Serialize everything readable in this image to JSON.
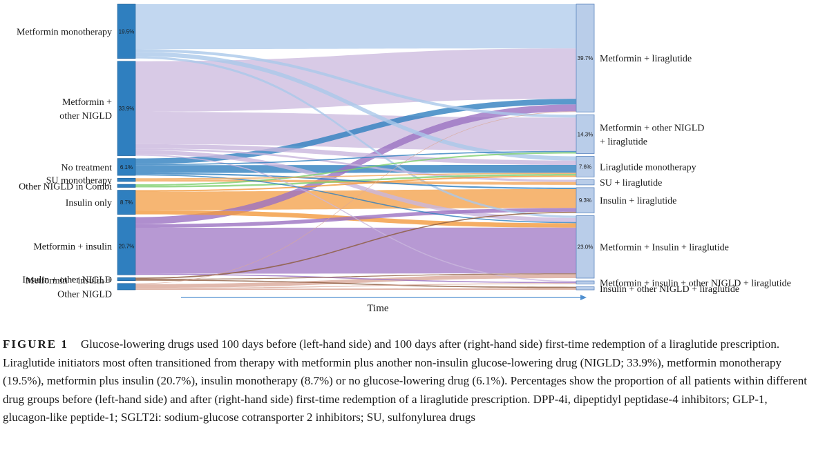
{
  "chart_data": {
    "type": "sankey",
    "xlabel": "Time",
    "unit": "%",
    "left_nodes": [
      {
        "id": "L_mono",
        "label": [
          "Metformin monotherapy"
        ],
        "value": 19.5,
        "value_label": "19.5%"
      },
      {
        "id": "L_metnigld",
        "label": [
          "Metformin  +",
          "other NIGLD"
        ],
        "value": 33.9,
        "value_label": "33.9%"
      },
      {
        "id": "L_none",
        "label": [
          "No treatment"
        ],
        "value": 6.1,
        "value_label": "6.1%"
      },
      {
        "id": "L_su",
        "label": [
          "SU monotherapy"
        ],
        "value": 1.2,
        "value_label": ""
      },
      {
        "id": "L_other",
        "label": [
          "Other NIGLD in Combi"
        ],
        "value": 1.1,
        "value_label": ""
      },
      {
        "id": "L_ins",
        "label": [
          "Insulin only"
        ],
        "value": 8.7,
        "value_label": "8.7%"
      },
      {
        "id": "L_metins",
        "label": [
          "Metformin + insulin"
        ],
        "value": 20.7,
        "value_label": "20.7%"
      },
      {
        "id": "L_insnigld",
        "label": [
          "Insulin + other NIGLD"
        ],
        "value": 1.0,
        "value_label": ""
      },
      {
        "id": "L_metinsnigld",
        "label": [
          "Metformin + insulin +",
          "Other NIGLD"
        ],
        "value": 2.3,
        "value_label": ""
      }
    ],
    "right_nodes": [
      {
        "id": "R_metlira",
        "label": [
          "Metformin + liraglutide"
        ],
        "value": 39.7,
        "value_label": "39.7%"
      },
      {
        "id": "R_metnigldlira",
        "label": [
          "Metformin + other NIGLD",
          "  + liraglutide"
        ],
        "value": 14.3,
        "value_label": "14.3%"
      },
      {
        "id": "R_liramono",
        "label": [
          "Liraglutide monotherapy"
        ],
        "value": 7.6,
        "value_label": "7.6%"
      },
      {
        "id": "R_sulira",
        "label": [
          "SU + liraglutide"
        ],
        "value": 1.9,
        "value_label": ""
      },
      {
        "id": "R_inslira",
        "label": [
          "Insulin + liraglutide"
        ],
        "value": 9.3,
        "value_label": "9.3%"
      },
      {
        "id": "R_metinslira",
        "label": [
          "Metformin + Insulin + liraglutide"
        ],
        "value": 23.0,
        "value_label": "23.0%"
      },
      {
        "id": "R_metinsniglira",
        "label": [
          "Metformin + insulin + other NIGLD + liraglutide"
        ],
        "value": 1.1,
        "value_label": ""
      },
      {
        "id": "R_insniglira",
        "label": [
          "Insulin + other NIGLD + liraglutide"
        ],
        "value": 0.7,
        "value_label": ""
      }
    ],
    "flows": [
      {
        "from": "L_mono",
        "to": "R_metlira",
        "value": 15.8
      },
      {
        "from": "L_mono",
        "to": "R_liramono",
        "value": 1.5
      },
      {
        "from": "L_mono",
        "to": "R_metnigldlira",
        "value": 1.0
      },
      {
        "from": "L_mono",
        "to": "R_metinslira",
        "value": 0.8
      },
      {
        "from": "L_metnigld",
        "to": "R_metlira",
        "value": 18.0
      },
      {
        "from": "L_metnigld",
        "to": "R_metnigldlira",
        "value": 11.5
      },
      {
        "from": "L_metnigld",
        "to": "R_liramono",
        "value": 1.6
      },
      {
        "from": "L_metnigld",
        "to": "R_metinslira",
        "value": 1.5
      },
      {
        "from": "L_metnigld",
        "to": "R_sulira",
        "value": 0.6
      },
      {
        "from": "L_metnigld",
        "to": "R_metinsniglira",
        "value": 0.4
      },
      {
        "from": "L_none",
        "to": "R_metlira",
        "value": 2.0
      },
      {
        "from": "L_none",
        "to": "R_liramono",
        "value": 2.8
      },
      {
        "from": "L_none",
        "to": "R_metnigldlira",
        "value": 0.4
      },
      {
        "from": "L_none",
        "to": "R_inslira",
        "value": 0.5
      },
      {
        "from": "L_none",
        "to": "R_metinslira",
        "value": 0.4
      },
      {
        "from": "L_su",
        "to": "R_sulira",
        "value": 0.8
      },
      {
        "from": "L_su",
        "to": "R_liramono",
        "value": 0.4
      },
      {
        "from": "L_other",
        "to": "R_liramono",
        "value": 0.6
      },
      {
        "from": "L_other",
        "to": "R_metnigldlira",
        "value": 0.5
      },
      {
        "from": "L_ins",
        "to": "R_inslira",
        "value": 6.6
      },
      {
        "from": "L_ins",
        "to": "R_liramono",
        "value": 0.5
      },
      {
        "from": "L_ins",
        "to": "R_metinslira",
        "value": 1.6
      },
      {
        "from": "L_metins",
        "to": "R_metinslira",
        "value": 16.5
      },
      {
        "from": "L_metins",
        "to": "R_metlira",
        "value": 2.5
      },
      {
        "from": "L_metins",
        "to": "R_inslira",
        "value": 1.3
      },
      {
        "from": "L_metins",
        "to": "R_metinsniglira",
        "value": 0.4
      },
      {
        "from": "L_insnigld",
        "to": "R_inslira",
        "value": 0.4
      },
      {
        "from": "L_insnigld",
        "to": "R_insniglira",
        "value": 0.3
      },
      {
        "from": "L_insnigld",
        "to": "R_metinslira",
        "value": 0.3
      },
      {
        "from": "L_metinsnigld",
        "to": "R_metinslira",
        "value": 1.4
      },
      {
        "from": "L_metinsnigld",
        "to": "R_metinsniglira",
        "value": 0.3
      },
      {
        "from": "L_metinsnigld",
        "to": "R_insniglira",
        "value": 0.4
      },
      {
        "from": "L_metinsnigld",
        "to": "R_metlira",
        "value": 0.2
      }
    ],
    "colors": {
      "node_left": "#2f7fbf",
      "node_right": "#b9cde9",
      "node_right_stroke": "#5b86c0",
      "axis_arrow": "#4f8fd0",
      "flow_colors": {
        "L_mono": "#aac8ea",
        "L_metnigld": "#c9b6dd",
        "L_none": "#2f7fbf",
        "L_su": "#f2a65a",
        "L_other": "#7fcf6f",
        "L_ins": "#f39a3d",
        "L_metins": "#9b72c2",
        "L_insnigld": "#8c5a3c",
        "L_metinsnigld": "#d9a99a"
      }
    }
  },
  "caption": {
    "figure_label": "FIGURE 1",
    "text": "Glucose-lowering drugs used 100 days before (left-hand side) and 100 days after (right-hand side) first-time redemption of a liraglutide prescription. Liraglutide initiators most often transitioned from therapy with metformin plus another non-insulin glucose-lowering drug (NIGLD; 33.9%), metformin monotherapy (19.5%), metformin plus insulin (20.7%), insulin monotherapy (8.7%) or no glucose-lowering drug (6.1%). Percentages show the proportion of all patients within different drug groups before (left-hand side) and after (right-hand side) first-time redemption of a liraglutide prescription. DPP-4i, dipeptidyl peptidase-4 inhibitors; GLP-1, glucagon-like peptide-1; SGLT2i: sodium-glucose cotransporter 2 inhibitors; SU, sulfonylurea drugs"
  }
}
